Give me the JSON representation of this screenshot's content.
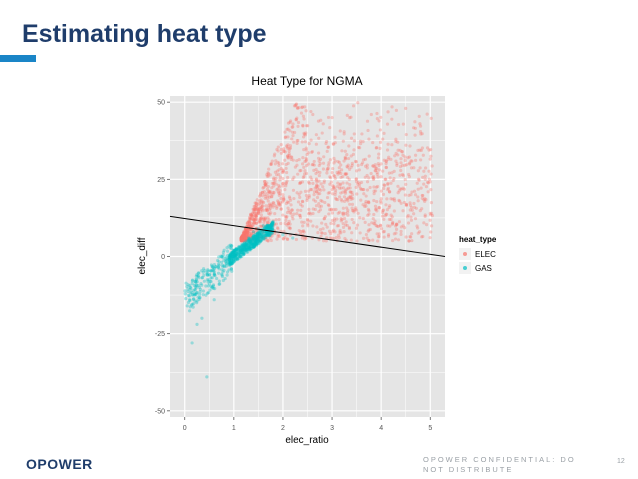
{
  "slide": {
    "title": "Estimating heat type",
    "logo_text": "OPOWER",
    "footer_note": "OPOWER CONFIDENTIAL: DO NOT DISTRIBUTE",
    "page_number": "12"
  },
  "chart_data": {
    "type": "scatter",
    "title": "Heat Type for NGMA",
    "xlabel": "elec_ratio",
    "ylabel": "elec_diff",
    "xlim": [
      -0.3,
      5.3
    ],
    "ylim": [
      -52,
      52
    ],
    "x_ticks": [
      "0",
      "1",
      "2",
      "3",
      "4",
      "5"
    ],
    "y_ticks": [
      "-50",
      "-25",
      "0",
      "25",
      "50"
    ],
    "grid": true,
    "legend": {
      "title": "heat_type",
      "position": "right",
      "entries": [
        "ELEC",
        "GAS"
      ]
    },
    "colors": {
      "ELEC": "#f8766d",
      "GAS": "#00bfc4",
      "panel": "#e5e5e5",
      "grid": "#ffffff",
      "line": "#000000"
    },
    "series": [
      {
        "name": "ELEC",
        "x_range": [
          1.1,
          5.1
        ],
        "y_range": [
          5,
          50
        ],
        "points": [
          [
            1.3,
            10
          ],
          [
            1.5,
            14
          ],
          [
            1.7,
            18
          ],
          [
            1.9,
            22
          ],
          [
            2.0,
            28
          ],
          [
            2.1,
            35
          ],
          [
            2.2,
            42
          ],
          [
            2.3,
            48
          ],
          [
            1.6,
            12
          ],
          [
            1.8,
            16
          ],
          [
            2.0,
            20
          ],
          [
            2.2,
            25
          ],
          [
            2.4,
            30
          ],
          [
            2.6,
            34
          ],
          [
            2.8,
            40
          ],
          [
            3.0,
            45
          ],
          [
            1.4,
            8
          ],
          [
            1.7,
            10
          ],
          [
            2.5,
            12
          ],
          [
            3.2,
            18
          ],
          [
            3.6,
            24
          ],
          [
            4.0,
            30
          ],
          [
            4.3,
            38
          ],
          [
            4.7,
            20
          ],
          [
            5.0,
            14
          ],
          [
            1.9,
            9
          ],
          [
            2.3,
            15
          ],
          [
            2.7,
            22
          ],
          [
            3.3,
            33
          ],
          [
            3.8,
            46
          ],
          [
            4.5,
            48
          ],
          [
            2.9,
            28
          ],
          [
            3.5,
            15
          ],
          [
            4.2,
            12
          ],
          [
            4.9,
            26
          ]
        ]
      },
      {
        "name": "GAS",
        "x_range": [
          0,
          2.2
        ],
        "y_range": [
          -40,
          12
        ],
        "points": [
          [
            1.0,
            0
          ],
          [
            1.1,
            2
          ],
          [
            1.2,
            4
          ],
          [
            1.3,
            6
          ],
          [
            1.4,
            8
          ],
          [
            1.5,
            9
          ],
          [
            0.9,
            -1
          ],
          [
            0.8,
            -3
          ],
          [
            0.7,
            -4
          ],
          [
            0.6,
            -5
          ],
          [
            0.5,
            -6
          ],
          [
            0.4,
            -8
          ],
          [
            0.3,
            -10
          ],
          [
            0.2,
            -12
          ],
          [
            0.1,
            -14
          ],
          [
            0.05,
            -16
          ],
          [
            1.6,
            10
          ],
          [
            1.8,
            11
          ],
          [
            2.0,
            7
          ],
          [
            2.2,
            6
          ],
          [
            0.35,
            -20
          ],
          [
            0.25,
            -22
          ],
          [
            0.45,
            -39
          ],
          [
            0.15,
            -28
          ],
          [
            0.6,
            -14
          ],
          [
            0.7,
            -9
          ],
          [
            1.05,
            1
          ],
          [
            1.15,
            3
          ],
          [
            1.25,
            5
          ]
        ]
      }
    ],
    "regression_line": {
      "x": [
        -0.3,
        5.3
      ],
      "y": [
        13,
        0
      ]
    }
  }
}
